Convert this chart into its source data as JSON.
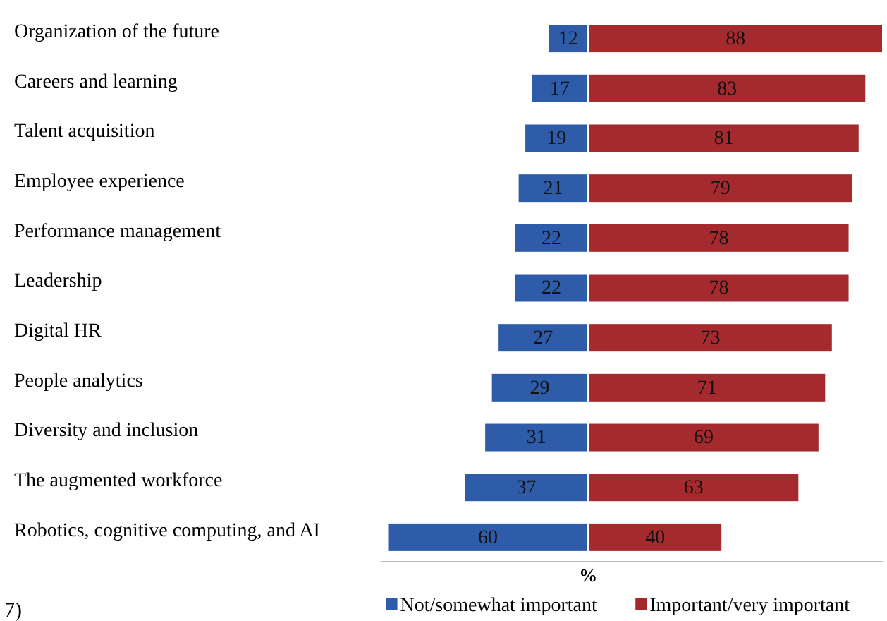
{
  "chart_data": [
    {
      "type": "bar",
      "orientation": "horizontal",
      "xlabel": "%",
      "categories": [
        "Organization of the future",
        "Careers and learning",
        "Talent acquisition",
        "Employee experience",
        "Performance management",
        "Leadership",
        "Digital HR",
        "People analytics",
        "Diversity and inclusion",
        "The augmented workforce",
        "Robotics, cognitive computing, and AI"
      ],
      "series": [
        {
          "name": "Not/somewhat important",
          "color": "#2e5ca8",
          "values": [
            12,
            17,
            19,
            21,
            22,
            22,
            27,
            29,
            31,
            37,
            60
          ]
        }
      ],
      "xlim": [
        62,
        0
      ],
      "tick_labels": "y",
      "data_labels": true,
      "legend": "bottom",
      "annotations": [
        "7)"
      ]
    },
    {
      "type": "bar",
      "orientation": "horizontal",
      "categories": [
        null,
        null,
        null,
        null,
        null,
        null,
        null,
        null,
        null,
        null,
        null
      ],
      "series": [
        {
          "name": "Important/very important",
          "color": "#a52a2e",
          "values": [
            88,
            83,
            81,
            79,
            78,
            78,
            73,
            71,
            69,
            63,
            40
          ]
        }
      ],
      "xlim": [
        0,
        88
      ],
      "tick_labels": false,
      "data_labels": true,
      "legend": "bottom"
    }
  ]
}
